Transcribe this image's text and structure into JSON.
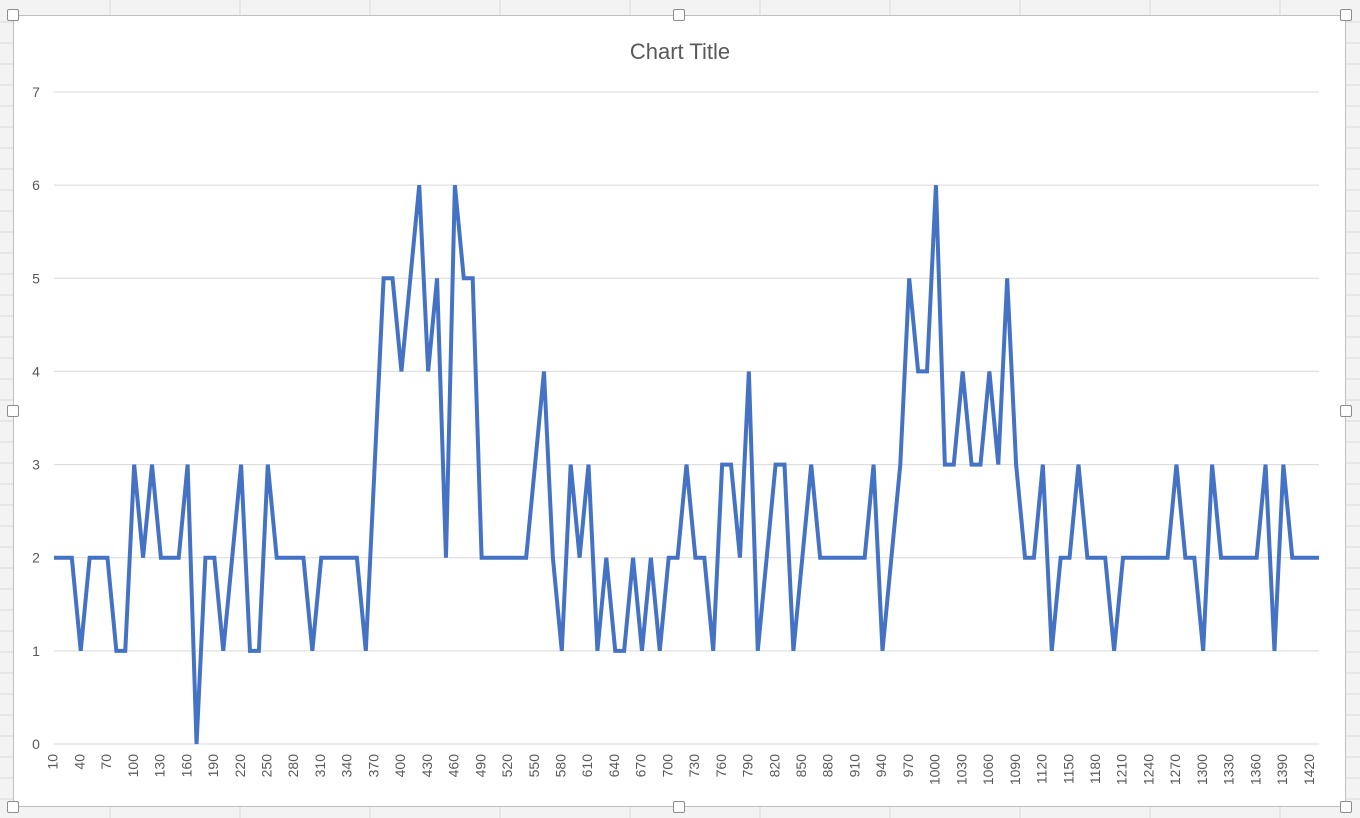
{
  "chart_data": {
    "type": "line",
    "title": "Chart Title",
    "xlabel": "",
    "ylabel": "",
    "ylim": [
      0,
      7
    ],
    "yticks": [
      0,
      1,
      2,
      3,
      4,
      5,
      6,
      7
    ],
    "grid": true,
    "legend": "none",
    "x_tick_labels": [
      "10",
      "40",
      "70",
      "100",
      "130",
      "160",
      "190",
      "220",
      "250",
      "280",
      "310",
      "340",
      "370",
      "400",
      "430",
      "460",
      "490",
      "520",
      "550",
      "580",
      "610",
      "640",
      "670",
      "700",
      "730",
      "760",
      "790",
      "820",
      "850",
      "880",
      "910",
      "940",
      "970",
      "1000",
      "1030",
      "1060",
      "1090",
      "1120",
      "1150",
      "1180",
      "1210",
      "1240",
      "1270",
      "1300",
      "1330",
      "1360",
      "1390",
      "1420"
    ],
    "series": [
      {
        "color": "#4472c4",
        "x": [
          10,
          20,
          30,
          40,
          50,
          60,
          70,
          80,
          90,
          100,
          110,
          120,
          130,
          140,
          150,
          160,
          170,
          180,
          190,
          200,
          210,
          220,
          230,
          240,
          250,
          260,
          270,
          280,
          290,
          300,
          310,
          320,
          330,
          340,
          350,
          360,
          370,
          380,
          390,
          400,
          410,
          420,
          430,
          440,
          450,
          460,
          470,
          480,
          490,
          500,
          510,
          520,
          530,
          540,
          550,
          560,
          570,
          580,
          590,
          600,
          610,
          620,
          630,
          640,
          650,
          660,
          670,
          680,
          690,
          700,
          710,
          720,
          730,
          740,
          750,
          760,
          770,
          780,
          790,
          800,
          810,
          820,
          830,
          840,
          850,
          860,
          870,
          880,
          890,
          900,
          910,
          920,
          930,
          940,
          950,
          960,
          970,
          980,
          990,
          1000,
          1010,
          1020,
          1030,
          1040,
          1050,
          1060,
          1070,
          1080,
          1090,
          1100,
          1110,
          1120,
          1130,
          1140,
          1150,
          1160,
          1170,
          1180,
          1190,
          1200,
          1210,
          1220,
          1230,
          1240,
          1250,
          1260,
          1270,
          1280,
          1290,
          1300,
          1310,
          1320,
          1330,
          1340,
          1350,
          1360,
          1370,
          1380,
          1390,
          1400,
          1410,
          1420,
          1430
        ],
        "values": [
          2,
          2,
          2,
          1,
          2,
          2,
          2,
          1,
          1,
          3,
          2,
          3,
          2,
          2,
          2,
          3,
          0,
          2,
          2,
          1,
          2,
          3,
          1,
          1,
          3,
          2,
          2,
          2,
          2,
          1,
          2,
          2,
          2,
          2,
          2,
          1,
          3,
          5,
          5,
          4,
          5,
          6,
          4,
          5,
          2,
          6,
          5,
          5,
          2,
          2,
          2,
          2,
          2,
          2,
          3,
          4,
          2,
          1,
          3,
          2,
          3,
          1,
          2,
          1,
          1,
          2,
          1,
          2,
          1,
          2,
          2,
          3,
          2,
          2,
          1,
          3,
          3,
          2,
          4,
          1,
          2,
          3,
          3,
          1,
          2,
          3,
          2,
          2,
          2,
          2,
          2,
          2,
          3,
          1,
          2,
          3,
          5,
          4,
          4,
          6,
          3,
          3,
          4,
          3,
          3,
          4,
          3,
          5,
          3,
          2,
          2,
          3,
          1,
          2,
          2,
          3,
          2,
          2,
          2,
          1,
          2,
          2,
          2,
          2,
          2,
          2,
          3,
          2,
          2,
          1,
          3,
          2,
          2,
          2,
          2,
          2,
          3,
          1,
          3,
          2,
          2,
          2,
          2
        ]
      }
    ]
  }
}
